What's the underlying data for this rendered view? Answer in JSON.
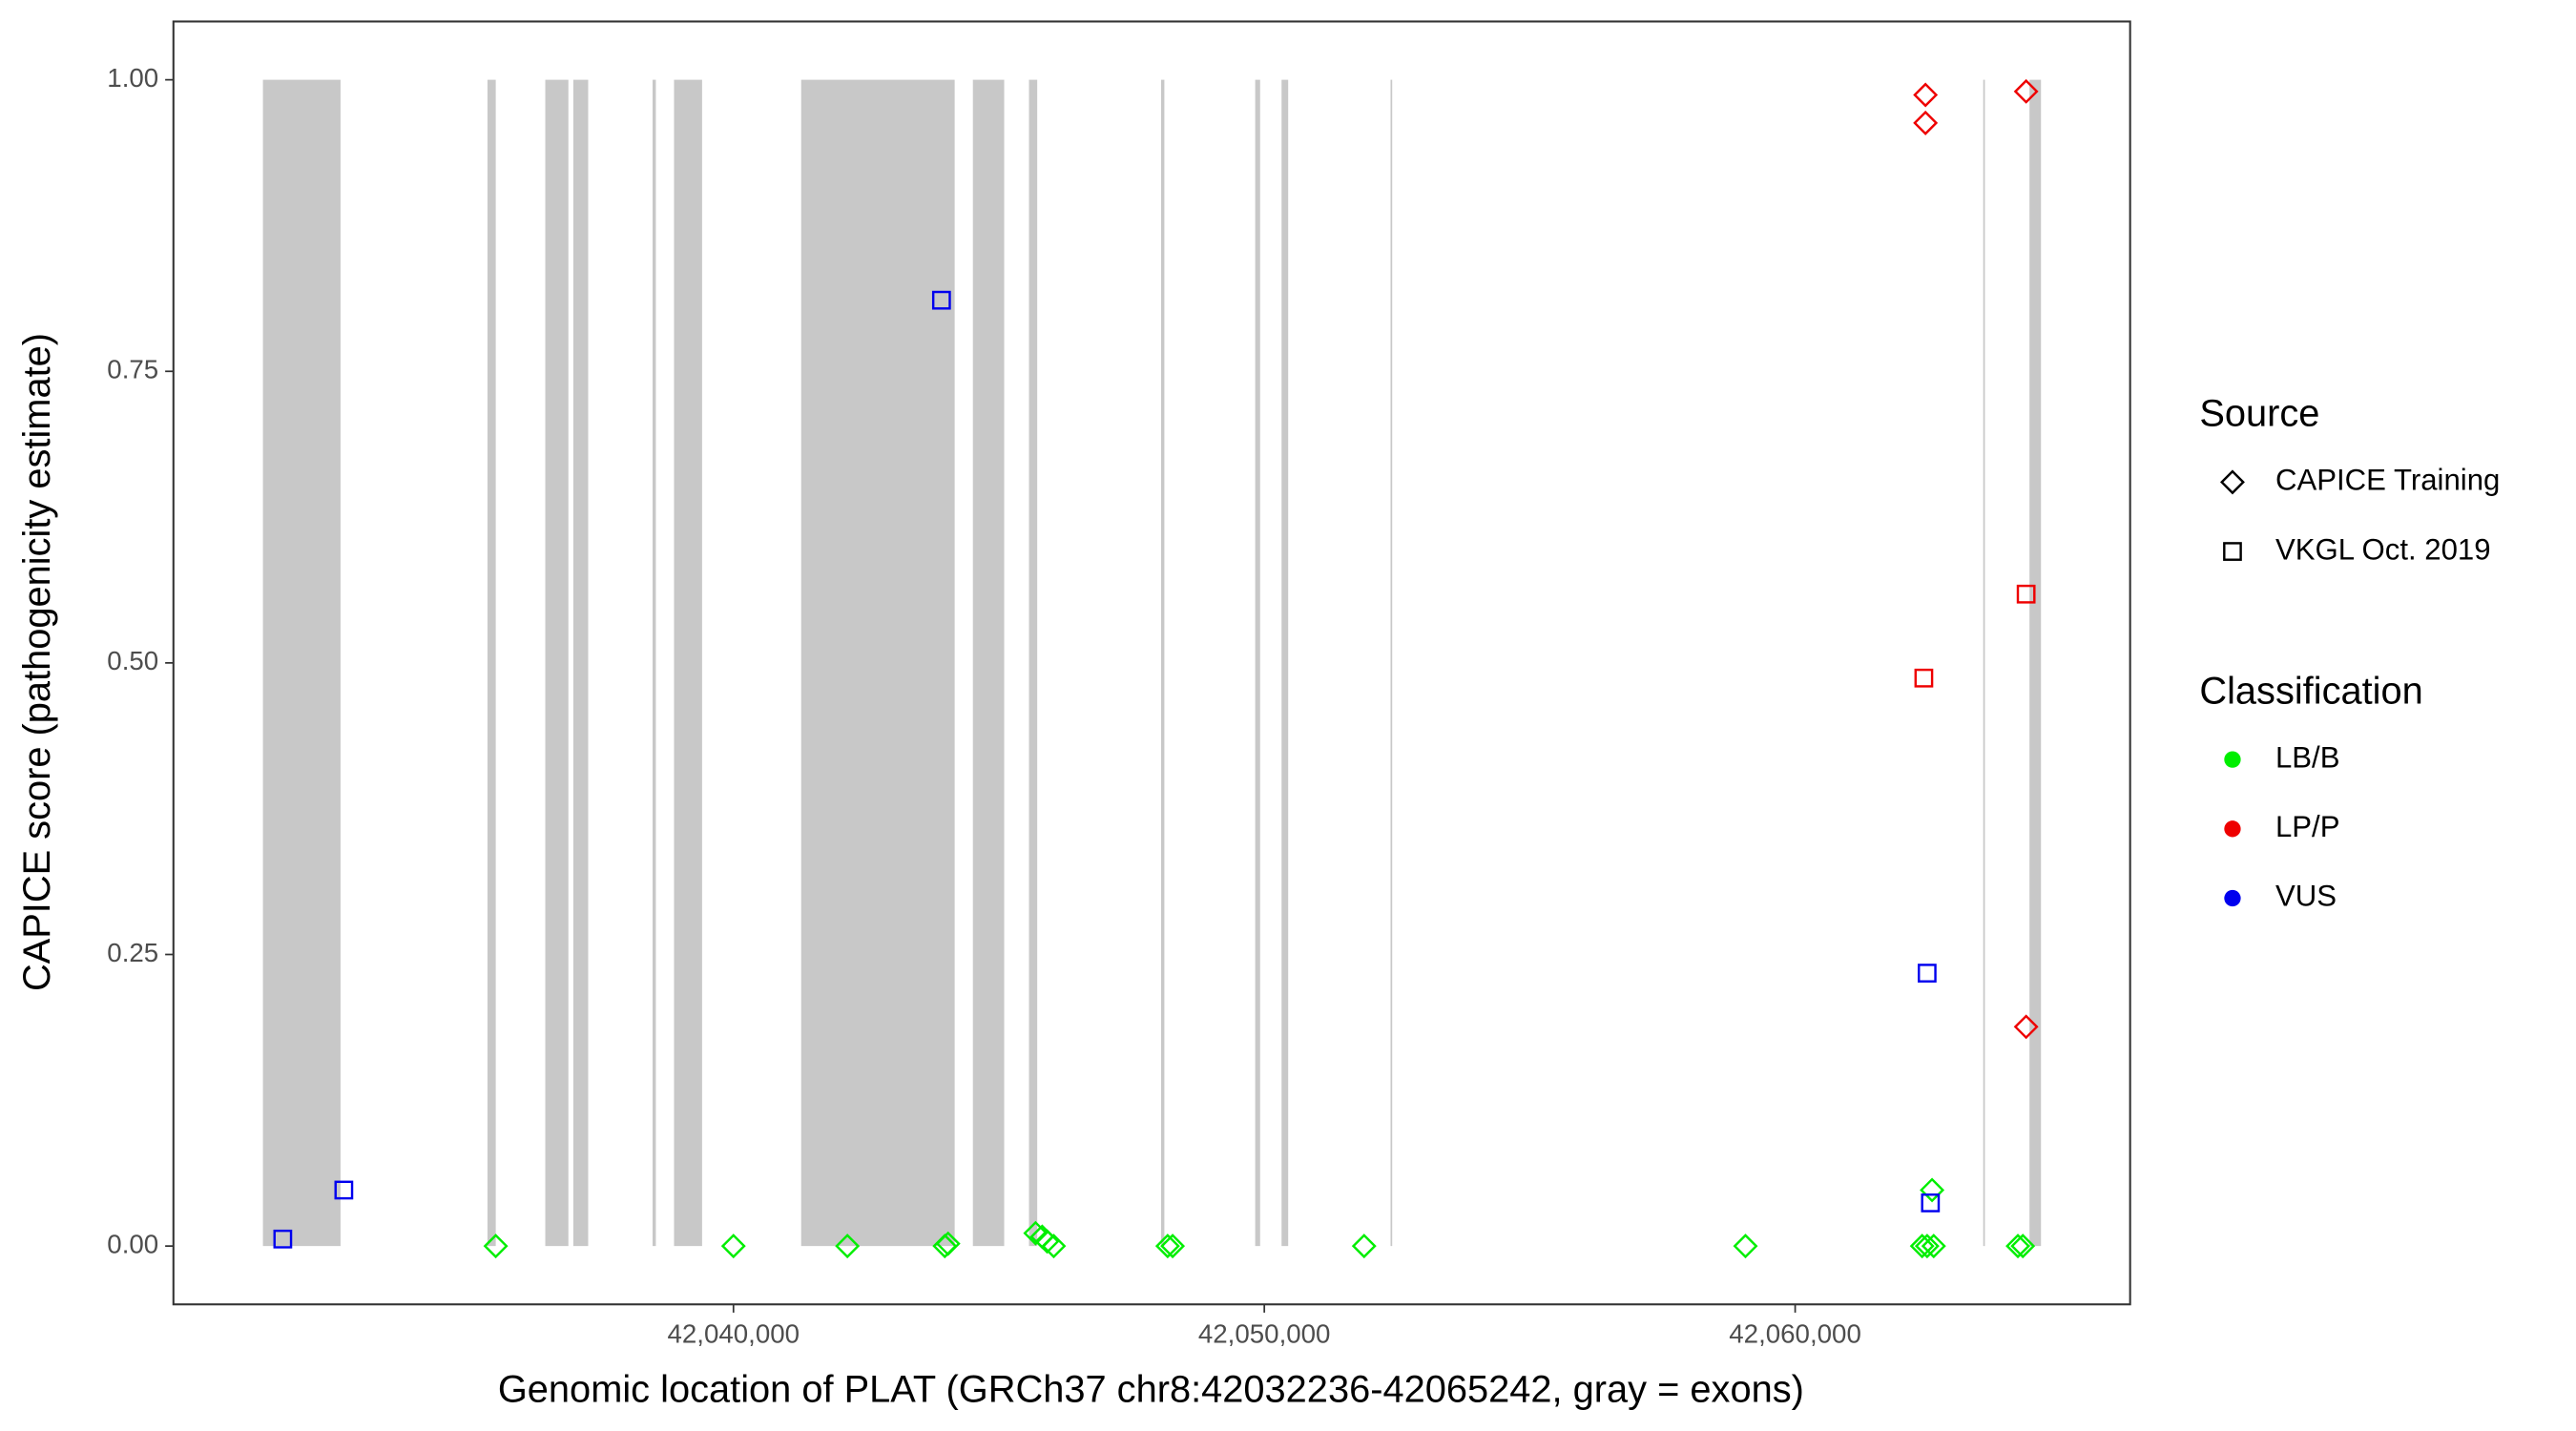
{
  "chart_data": {
    "type": "scatter",
    "x_label": "Genomic location of PLAT (GRCh37 chr8:42032236-42065242, gray = exons)",
    "y_label": "CAPICE score (pathogenicity estimate)",
    "xlim": [
      42029450,
      42066310
    ],
    "ylim": [
      -0.05,
      1.05
    ],
    "xticks": [
      {
        "value": 42040000,
        "label": "42,040,000"
      },
      {
        "value": 42050000,
        "label": "42,050,000"
      },
      {
        "value": 42060000,
        "label": "42,060,000"
      }
    ],
    "yticks": [
      {
        "value": 0,
        "label": "0.00"
      },
      {
        "value": 0.25,
        "label": "0.25"
      },
      {
        "value": 0.5,
        "label": "0.50"
      },
      {
        "value": 0.75,
        "label": "0.75"
      },
      {
        "value": 1,
        "label": "1.00"
      }
    ],
    "exon_color": "#c8c8c8",
    "exons": [
      [
        42031136,
        42032598
      ],
      [
        42035366,
        42035522
      ],
      [
        42036455,
        42036890
      ],
      [
        42036983,
        42037263
      ],
      [
        42038476,
        42038538
      ],
      [
        42038880,
        42039409
      ],
      [
        42041275,
        42044167
      ],
      [
        42044510,
        42045100
      ],
      [
        42045567,
        42045722
      ],
      [
        42048055,
        42048117
      ],
      [
        42049828,
        42049921
      ],
      [
        42050325,
        42050450
      ],
      [
        42052378,
        42052409
      ],
      [
        42063543,
        42063574
      ],
      [
        42064414,
        42064631
      ]
    ],
    "source_legend": {
      "title": "Source",
      "entries": [
        {
          "name": "CAPICE Training",
          "shape": "diamond"
        },
        {
          "name": "VKGL Oct. 2019",
          "shape": "square"
        }
      ]
    },
    "color_legend": {
      "title": "Classification",
      "entries": [
        {
          "name": "LB/B",
          "color": "#00ee00"
        },
        {
          "name": "LP/P",
          "color": "#ee0000"
        },
        {
          "name": "VUS",
          "color": "#0000ee"
        }
      ]
    },
    "series": [
      {
        "source": "CAPICE Training",
        "classification": "LB/B",
        "x": [
          42035522,
          42040000,
          42042146,
          42043981,
          42044043,
          42045691,
          42045816,
          42045909,
          42046033,
          42048179,
          42048273,
          42051880,
          42059064,
          42062392,
          42062486,
          42062610,
          42062579,
          42064196,
          42064289
        ],
        "y": [
          0,
          0,
          0,
          0,
          0.002,
          0.011,
          0.008,
          0.004,
          0,
          0,
          0,
          0,
          0,
          0,
          0,
          0,
          0.048,
          0,
          0
        ]
      },
      {
        "source": "CAPICE Training",
        "classification": "LP/P",
        "x": [
          42062455,
          42062455,
          42064351,
          42064351
        ],
        "y": [
          0.987,
          0.963,
          0.99,
          0.188
        ]
      },
      {
        "source": "VKGL Oct. 2019",
        "classification": "LP/P",
        "x": [
          42062424,
          42064351
        ],
        "y": [
          0.487,
          0.559
        ]
      },
      {
        "source": "VKGL Oct. 2019",
        "classification": "VUS",
        "x": [
          42031510,
          42032660,
          42043919,
          42062486,
          42062548
        ],
        "y": [
          0.006,
          0.048,
          0.811,
          0.234,
          0.037
        ]
      }
    ]
  }
}
